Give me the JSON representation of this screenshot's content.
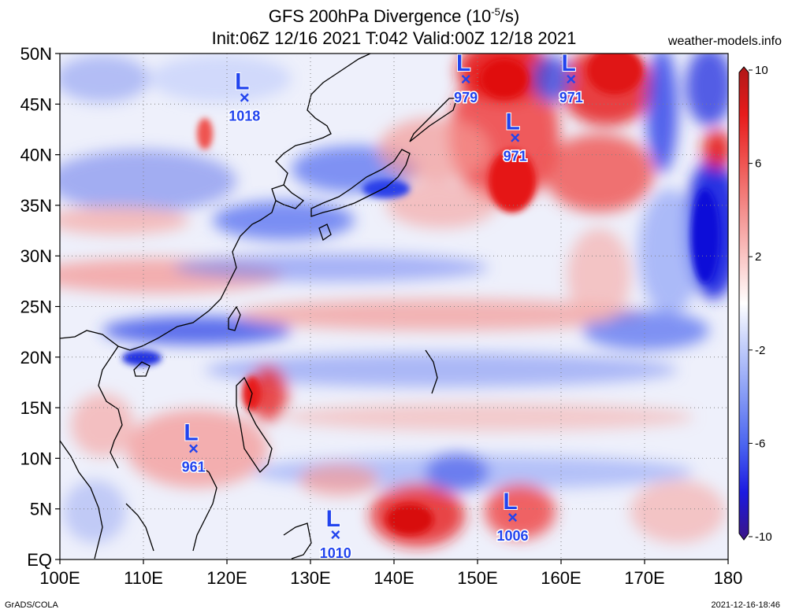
{
  "title": {
    "line1_prefix": "GFS 200hPa Divergence (10",
    "line1_exp": "-5",
    "line1_suffix": "/s)",
    "line2": "Init:06Z 12/16 2021 T:042 Valid:00Z 12/18 2021"
  },
  "site": "weather-models.info",
  "footer": {
    "left": "GrADS/COLA",
    "right": "2021-12-16-18:46"
  },
  "map": {
    "lon_range": [
      100,
      180
    ],
    "lat_range": [
      0,
      50
    ],
    "lat_labels": [
      {
        "lat": 50,
        "text": "50N"
      },
      {
        "lat": 45,
        "text": "45N"
      },
      {
        "lat": 40,
        "text": "40N"
      },
      {
        "lat": 35,
        "text": "35N"
      },
      {
        "lat": 30,
        "text": "30N"
      },
      {
        "lat": 25,
        "text": "25N"
      },
      {
        "lat": 20,
        "text": "20N"
      },
      {
        "lat": 15,
        "text": "15N"
      },
      {
        "lat": 10,
        "text": "10N"
      },
      {
        "lat": 5,
        "text": "5N"
      },
      {
        "lat": 0,
        "text": "EQ"
      }
    ],
    "lon_labels": [
      {
        "lon": 100,
        "text": "100E"
      },
      {
        "lon": 110,
        "text": "110E"
      },
      {
        "lon": 120,
        "text": "120E"
      },
      {
        "lon": 130,
        "text": "130E"
      },
      {
        "lon": 140,
        "text": "140E"
      },
      {
        "lon": 150,
        "text": "150E"
      },
      {
        "lon": 160,
        "text": "160E"
      },
      {
        "lon": 170,
        "text": "170E"
      },
      {
        "lon": 180,
        "text": "180"
      }
    ],
    "lows": [
      {
        "lon": 122.1,
        "lat": 45.7,
        "pressure": "1018"
      },
      {
        "lon": 148.6,
        "lat": 47.5,
        "pressure": "979"
      },
      {
        "lon": 161.2,
        "lat": 47.5,
        "pressure": "971"
      },
      {
        "lon": 154.5,
        "lat": 41.7,
        "pressure": "971"
      },
      {
        "lon": 116.0,
        "lat": 11.0,
        "pressure": "961"
      },
      {
        "lon": 133.0,
        "lat": 2.5,
        "pressure": "1010"
      },
      {
        "lon": 154.2,
        "lat": 4.2,
        "pressure": "1006"
      }
    ],
    "low_symbol": "L",
    "center_symbol": "×"
  },
  "colorbar": {
    "min": -10,
    "max": 10,
    "labels": [
      "10",
      "6",
      "2",
      "-2",
      "-6",
      "-10"
    ],
    "label_values": [
      10,
      6,
      2,
      -2,
      -6,
      -10
    ],
    "colors": [
      "#3b1585",
      "#1c1ae0",
      "#4a64f0",
      "#8ea2f6",
      "#c9d3fb",
      "#ffffff",
      "#fbd0cf",
      "#f49896",
      "#ef5350",
      "#e61b1b",
      "#b01818"
    ]
  }
}
